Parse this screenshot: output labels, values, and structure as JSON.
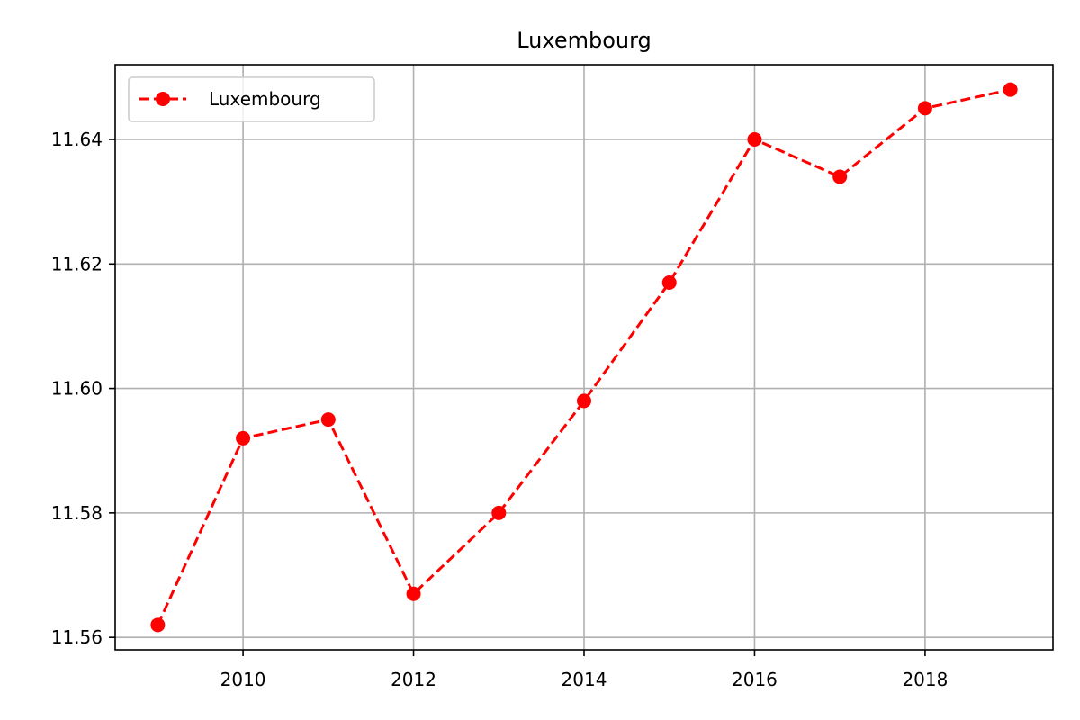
{
  "chart_data": {
    "type": "line",
    "title": "Luxembourg",
    "xlabel": "",
    "ylabel": "",
    "x": [
      2009,
      2010,
      2011,
      2012,
      2013,
      2014,
      2015,
      2016,
      2017,
      2018,
      2019
    ],
    "series": [
      {
        "name": "Luxembourg",
        "color": "#ff0000",
        "line_style": "dashed",
        "marker": "circle",
        "values": [
          11.562,
          11.592,
          11.595,
          11.567,
          11.58,
          11.598,
          11.617,
          11.64,
          11.634,
          11.645,
          11.648
        ]
      }
    ],
    "xlim": [
      2008.5,
      2019.5
    ],
    "ylim": [
      11.558,
      11.652
    ],
    "xticks": [
      2010,
      2012,
      2014,
      2016,
      2018
    ],
    "xtick_labels": [
      "2010",
      "2012",
      "2014",
      "2016",
      "2018"
    ],
    "yticks": [
      11.56,
      11.58,
      11.6,
      11.62,
      11.64
    ],
    "ytick_labels": [
      "11.56",
      "11.58",
      "11.60",
      "11.62",
      "11.64"
    ],
    "grid": true,
    "legend_position": "top-left"
  }
}
